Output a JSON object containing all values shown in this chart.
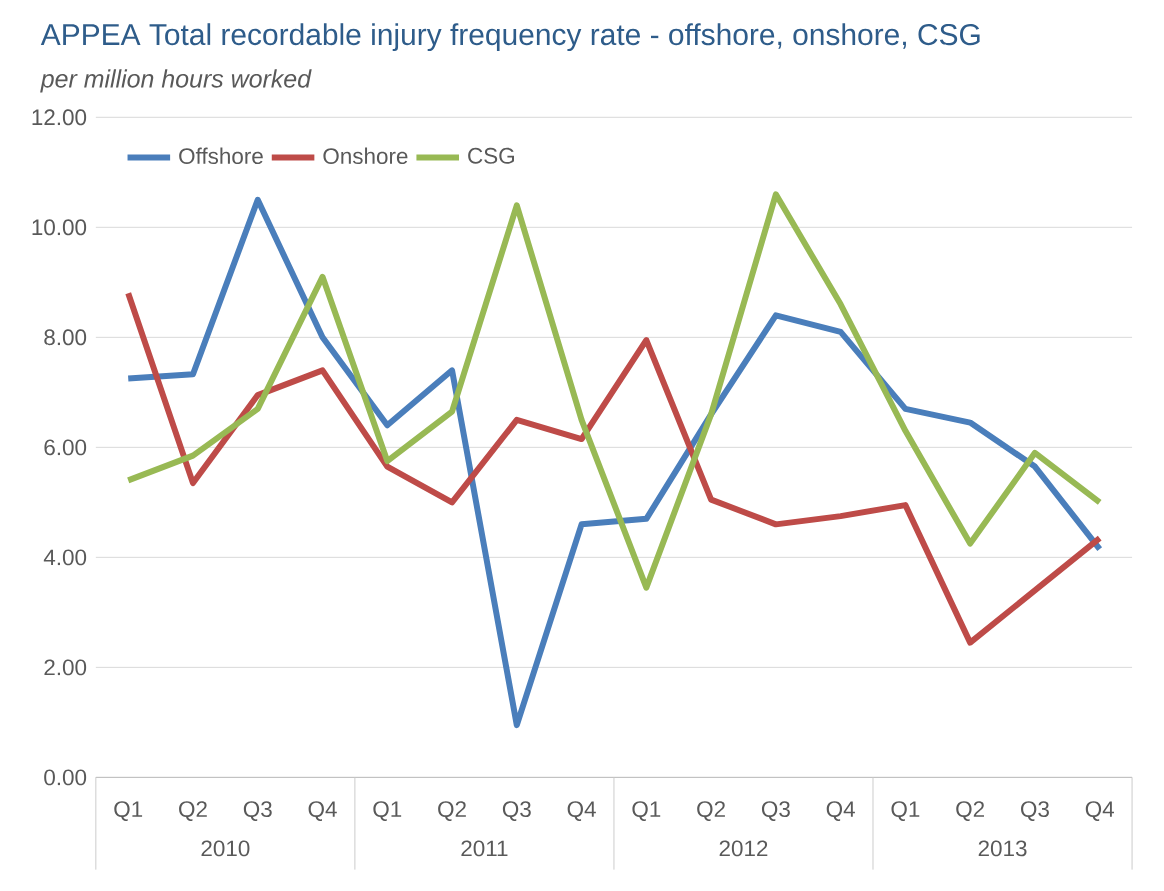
{
  "chart_data": {
    "type": "line",
    "title": "APPEA Total recordable injury frequency rate - offshore, onshore, CSG",
    "subtitle": "*per million hours worked*",
    "categories": [
      "Q1",
      "Q2",
      "Q3",
      "Q4",
      "Q1",
      "Q2",
      "Q3",
      "Q4",
      "Q1",
      "Q2",
      "Q3",
      "Q4",
      "Q1",
      "Q2",
      "Q3",
      "Q4"
    ],
    "annotations": [
      "2010",
      "2011",
      "2012",
      "2013"
    ],
    "series": [
      {
        "name": "Offshore",
        "color": "#4a7ebb",
        "values": [
          7.25,
          7.33,
          10.5,
          8.0,
          6.4,
          7.4,
          0.95,
          4.6,
          4.7,
          6.6,
          8.4,
          8.1,
          6.7,
          6.45,
          5.65,
          4.15
        ]
      },
      {
        "name": "Onshore",
        "color": "#be4b48",
        "values": [
          8.8,
          5.35,
          6.95,
          7.4,
          5.65,
          5.0,
          6.5,
          6.15,
          7.95,
          5.05,
          4.6,
          4.75,
          4.95,
          2.45,
          3.4,
          4.35
        ]
      },
      {
        "name": "CSG",
        "color": "#98b954",
        "values": [
          5.4,
          5.85,
          6.7,
          9.1,
          5.75,
          6.65,
          10.4,
          6.5,
          3.45,
          6.6,
          10.6,
          8.6,
          6.3,
          4.25,
          5.9,
          5.0
        ]
      }
    ],
    "ylim": [
      0,
      12
    ],
    "yticks": [
      {
        "value": 0,
        "label": "0.00"
      },
      {
        "value": 2,
        "label": "2.00"
      },
      {
        "value": 4,
        "label": "4.00"
      },
      {
        "value": 6,
        "label": "6.00"
      },
      {
        "value": 8,
        "label": "8.00"
      },
      {
        "value": 10,
        "label": "10.00"
      },
      {
        "value": 12,
        "label": "12.00"
      }
    ],
    "grid": "y",
    "legend": "top left",
    "marker": "none",
    "line_style": "solid"
  }
}
